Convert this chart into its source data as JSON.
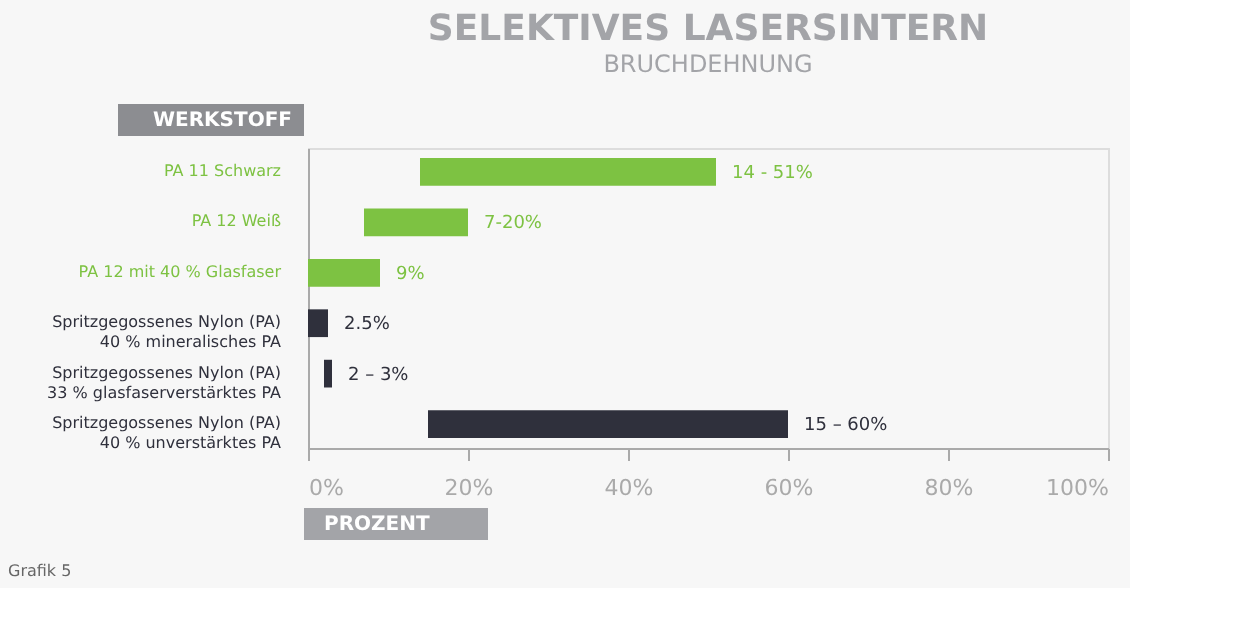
{
  "chart_data": {
    "type": "bar",
    "orientation": "horizontal",
    "title": "SELEKTIVES LASERSINTERN",
    "subtitle": "BRUCHDEHNUNG",
    "xlabel": "PROZENT",
    "ylabel": "WERKSTOFF",
    "categories": [
      "PA 11 Schwarz",
      "PA 12 Weiß",
      "PA 12 mit 40 % Glasfaser",
      "Spritzgegossenes Nylon (PA)\n40 % mineralisches PA",
      "Spritzgegossenes Nylon (PA)\n33 % glasfaserverstärktes PA",
      "Spritzgegossenes Nylon (PA)\n40 % unverstärktes PA"
    ],
    "base": [
      14,
      7,
      0,
      0,
      2,
      15
    ],
    "values": [
      37,
      13,
      9,
      2.5,
      1,
      45
    ],
    "colors": [
      "#7dc242",
      "#7dc242",
      "#7dc242",
      "#2f303c",
      "#2f303c",
      "#2f303c"
    ],
    "xlim": [
      0,
      100
    ],
    "xticks": [
      {
        "value": 0,
        "label": "0%"
      },
      {
        "value": 20,
        "label": "20%"
      },
      {
        "value": 40,
        "label": "40%"
      },
      {
        "value": 60,
        "label": "60%"
      },
      {
        "value": 80,
        "label": "80%"
      },
      {
        "value": 100,
        "label": "100%"
      }
    ],
    "grid": false,
    "annotations": [
      {
        "text": "14 - 51%",
        "x": 51,
        "y": "PA 11 Schwarz"
      },
      {
        "text": "7-20%",
        "x": 20,
        "y": "PA 12 Weiß"
      },
      {
        "text": "9%",
        "x": 9,
        "y": "PA 12 mit 40 % Glasfaser"
      },
      {
        "text": "2.5%",
        "x": 2.5,
        "y": "Spritzgegossenes Nylon (PA)\n40 % mineralisches PA"
      },
      {
        "text": "2 – 3%",
        "x": 3,
        "y": "Spritzgegossenes Nylon (PA)\n33 % glasfaserverstärktes PA"
      },
      {
        "text": "15 – 60%",
        "x": 60,
        "y": "Spritzgegossenes Nylon (PA)\n40 % unverstärktes PA"
      },
      "Grafik 5"
    ]
  }
}
